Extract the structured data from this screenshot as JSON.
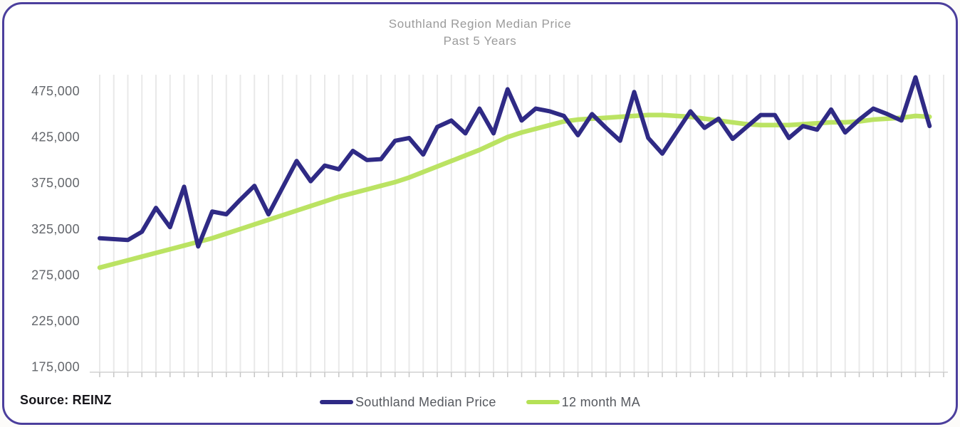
{
  "title": {
    "line1": "Southland Region Median Price",
    "line2": "Past 5 Years"
  },
  "source": {
    "label": "Source: REINZ"
  },
  "legend": [
    {
      "label": "Southland Median Price",
      "color": "#2f2a85"
    },
    {
      "label": "12 month MA",
      "color": "#b5e156"
    }
  ],
  "colors": {
    "frame_border": "#4c3f9d",
    "navy_series": "#2f2a85",
    "green_series": "#b5e156",
    "gridline": "#e9e9e9",
    "axis_line": "#dcdcdc",
    "tick": "#c6c6c6",
    "title_text": "#9b9b9b",
    "y_label_text": "#63666b"
  },
  "y_axis": {
    "tick_labels": [
      "475,000",
      "425,000",
      "375,000",
      "325,000",
      "275,000",
      "225,000",
      "175,000"
    ],
    "min": 175000,
    "max": 475000,
    "step": 50000
  },
  "chart_data": {
    "type": "line",
    "title": "Southland Region Median Price",
    "subtitle": "Past 5 Years",
    "x_axis": "60 monthly observations spanning 5 years (no x tick labels shown)",
    "ylabel": "",
    "ylim": [
      175000,
      475000
    ],
    "y_tick_step": 50000,
    "grid": "vertical gridlines at every monthly point, no horizontal gridlines",
    "legend_position": "bottom-center",
    "series": [
      {
        "name": "Southland Median Price",
        "color": "#2f2a85",
        "values": [
          315000,
          314000,
          313000,
          322000,
          348000,
          327000,
          371000,
          306000,
          344000,
          341000,
          357000,
          372000,
          341000,
          370000,
          399000,
          377000,
          394000,
          390000,
          410000,
          400000,
          401000,
          421000,
          424000,
          406000,
          436000,
          443000,
          429000,
          456000,
          429000,
          477000,
          443000,
          456000,
          453000,
          448000,
          427000,
          450000,
          435000,
          421000,
          474000,
          424000,
          407000,
          430000,
          453000,
          435000,
          445000,
          423000,
          436000,
          449000,
          449000,
          424000,
          437000,
          433000,
          455000,
          430000,
          444000,
          456000,
          450000,
          443000,
          490000,
          437000
        ]
      },
      {
        "name": "12 month MA",
        "color": "#b5e156",
        "values": [
          283000,
          287000,
          291000,
          295000,
          299000,
          303000,
          307000,
          311000,
          315000,
          320000,
          325000,
          330000,
          335000,
          340000,
          345000,
          350000,
          355000,
          360000,
          364000,
          368000,
          372000,
          376000,
          381000,
          387000,
          393000,
          399000,
          405000,
          411000,
          418000,
          425000,
          430000,
          434000,
          438000,
          442000,
          444000,
          445000,
          446000,
          447000,
          448000,
          449000,
          449000,
          448000,
          447000,
          445000,
          443000,
          441000,
          439000,
          438000,
          438000,
          438000,
          439000,
          440000,
          441000,
          441000,
          442000,
          444000,
          445000,
          446000,
          448000,
          447000
        ]
      }
    ]
  }
}
